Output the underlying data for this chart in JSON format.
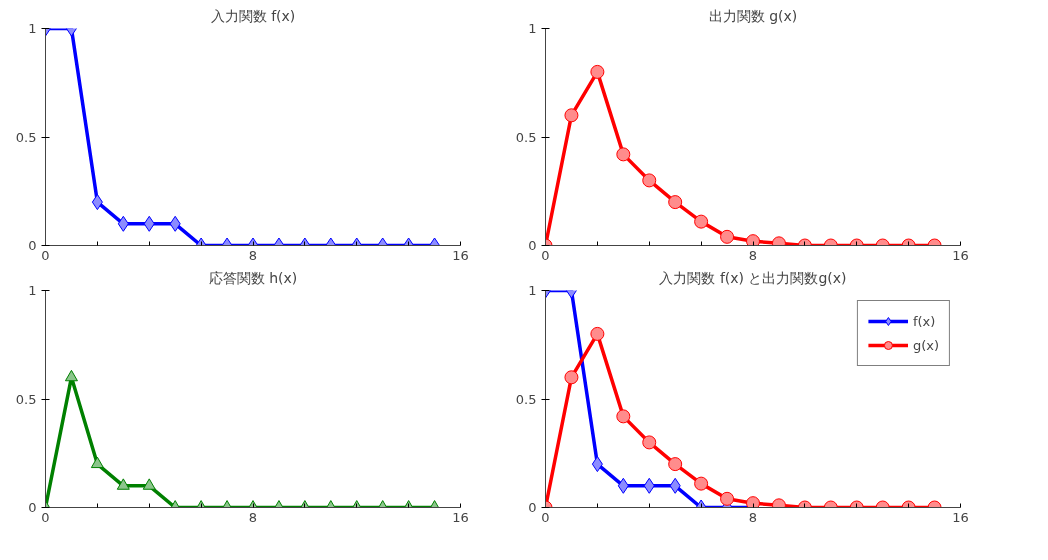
{
  "chart_data": [
    {
      "type": "line",
      "title": "入力関数 f(x)",
      "x": [
        0,
        1,
        2,
        3,
        4,
        5,
        6,
        7,
        8,
        9,
        10,
        11,
        12,
        13,
        14,
        15
      ],
      "xlim": [
        0,
        16
      ],
      "ylim": [
        0,
        1
      ],
      "xticks": [
        0,
        {
          "value": 2,
          "label": null
        },
        {
          "value": 4,
          "label": null
        },
        {
          "value": 6,
          "label": null
        },
        8,
        {
          "value": 10,
          "label": null
        },
        {
          "value": 12,
          "label": null
        },
        {
          "value": 14,
          "label": null
        },
        16
      ],
      "yticks": [
        0,
        0.5,
        1
      ],
      "grid": false,
      "legend": false,
      "line_style": "solid",
      "series": [
        {
          "color": "#0000ff",
          "marker": "diamond",
          "values": [
            1,
            1,
            0.2,
            0.1,
            0.1,
            0.1,
            0,
            0,
            0,
            0,
            0,
            0,
            0,
            0,
            0,
            0
          ]
        }
      ]
    },
    {
      "type": "line",
      "title": "出力関数 g(x)",
      "x": [
        0,
        1,
        2,
        3,
        4,
        5,
        6,
        7,
        8,
        9,
        10,
        11,
        12,
        13,
        14,
        15
      ],
      "xlim": [
        0,
        16
      ],
      "ylim": [
        0,
        1
      ],
      "xticks": [
        0,
        {
          "value": 2,
          "label": null
        },
        {
          "value": 4,
          "label": null
        },
        {
          "value": 6,
          "label": null
        },
        8,
        {
          "value": 10,
          "label": null
        },
        {
          "value": 12,
          "label": null
        },
        {
          "value": 14,
          "label": null
        },
        16
      ],
      "yticks": [
        0,
        0.5,
        1
      ],
      "grid": false,
      "legend": false,
      "line_style": "solid",
      "series": [
        {
          "color": "#ff0000",
          "marker": "circle",
          "values": [
            0,
            0.6,
            0.8,
            0.42,
            0.3,
            0.2,
            0.11,
            0.04,
            0.02,
            0.01,
            0,
            0,
            0,
            0,
            0,
            0
          ]
        }
      ]
    },
    {
      "type": "line",
      "title": "応答関数 h(x)",
      "x": [
        0,
        1,
        2,
        3,
        4,
        5,
        6,
        7,
        8,
        9,
        10,
        11,
        12,
        13,
        14,
        15
      ],
      "xlim": [
        0,
        16
      ],
      "ylim": [
        0,
        1
      ],
      "xticks": [
        0,
        {
          "value": 2,
          "label": null
        },
        {
          "value": 4,
          "label": null
        },
        {
          "value": 6,
          "label": null
        },
        8,
        {
          "value": 10,
          "label": null
        },
        {
          "value": 12,
          "label": null
        },
        {
          "value": 14,
          "label": null
        },
        16
      ],
      "yticks": [
        0,
        0.5,
        1
      ],
      "grid": false,
      "legend": false,
      "line_style": "solid",
      "series": [
        {
          "color": "#008000",
          "marker": "triangle",
          "values": [
            0,
            0.6,
            0.2,
            0.1,
            0.1,
            0,
            0,
            0,
            0,
            0,
            0,
            0,
            0,
            0,
            0,
            0
          ]
        }
      ]
    },
    {
      "type": "line",
      "title": "入力関数 f(x) と出力関数g(x)",
      "x": [
        0,
        1,
        2,
        3,
        4,
        5,
        6,
        7,
        8,
        9,
        10,
        11,
        12,
        13,
        14,
        15
      ],
      "xlim": [
        0,
        16
      ],
      "ylim": [
        0,
        1
      ],
      "xticks": [
        0,
        {
          "value": 2,
          "label": null
        },
        {
          "value": 4,
          "label": null
        },
        {
          "value": 6,
          "label": null
        },
        8,
        {
          "value": 10,
          "label": null
        },
        {
          "value": 12,
          "label": null
        },
        {
          "value": 14,
          "label": null
        },
        16
      ],
      "yticks": [
        0,
        0.5,
        1
      ],
      "grid": false,
      "legend": "top right",
      "line_style": "solid",
      "series": [
        {
          "name": "f(x)",
          "color": "#0000ff",
          "marker": "diamond",
          "x": [
            0,
            1,
            2,
            3,
            4,
            5,
            6,
            7,
            8
          ],
          "values": [
            1,
            1,
            0.2,
            0.1,
            0.1,
            0.1,
            0,
            0,
            0
          ]
        },
        {
          "name": "g(x)",
          "color": "#ff0000",
          "marker": "circle",
          "values": [
            0,
            0.6,
            0.8,
            0.42,
            0.3,
            0.2,
            0.11,
            0.04,
            0.02,
            0.01,
            0,
            0,
            0,
            0,
            0,
            0
          ]
        }
      ]
    }
  ]
}
